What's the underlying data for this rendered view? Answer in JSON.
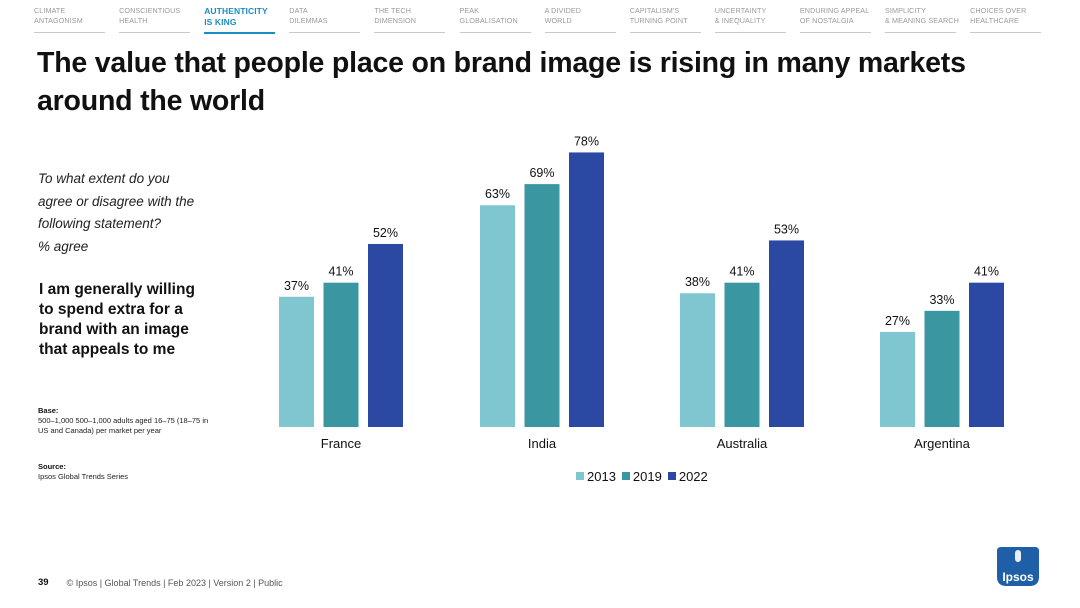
{
  "nav": [
    {
      "line1": "CLIMATE",
      "line2": "ANTAGONISM",
      "active": false
    },
    {
      "line1": "CONSCIENTIOUS",
      "line2": "HEALTH",
      "active": false
    },
    {
      "line1": "AUTHENTICITY",
      "line2": "IS KING",
      "active": true
    },
    {
      "line1": "DATA",
      "line2": "DILEMMAS",
      "active": false
    },
    {
      "line1": "THE TECH",
      "line2": "DIMENSION",
      "active": false
    },
    {
      "line1": "PEAK",
      "line2": "GLOBALISATION",
      "active": false
    },
    {
      "line1": "A DIVIDED",
      "line2": "WORLD",
      "active": false
    },
    {
      "line1": "CAPITALISM'S",
      "line2": "TURNING POINT",
      "active": false
    },
    {
      "line1": "UNCERTAINTY",
      "line2": "& INEQUALITY",
      "active": false
    },
    {
      "line1": "ENDURING APPEAL",
      "line2": "OF NOSTALGIA",
      "active": false
    },
    {
      "line1": "SIMPLICITY",
      "line2": "& MEANING SEARCH",
      "active": false
    },
    {
      "line1": "CHOICES OVER",
      "line2": "HEALTHCARE",
      "active": false
    }
  ],
  "title_line1": "The value that people place on brand image is rising in many markets",
  "title_line2": "around the world",
  "question": {
    "line1": "To what extent do you",
    "line2": "agree or disagree with the",
    "line3": "following statement?",
    "line4": "% agree"
  },
  "statement": {
    "line1": "I am generally willing",
    "line2": "to spend extra for a",
    "line3": "brand with an image",
    "line4": "that appeals to me"
  },
  "base": {
    "heading": "Base:",
    "line1": "500–1,000 500–1,000 adults aged 16–75 (18–75 in",
    "line2": "US and Canada) per market per year"
  },
  "source": {
    "heading": "Source:",
    "line1": "Ipsos Global Trends Series"
  },
  "footer": {
    "page_number": "39",
    "text": "© Ipsos | Global Trends | Feb 2023 | Version 2 | Public"
  },
  "logo_text": "Ipsos",
  "colors": {
    "accent": "#1a8cc6",
    "s2013": "#7fc6d1",
    "s2019": "#3a96a0",
    "s2022": "#2b48a3",
    "logo": "#1f5fa8"
  },
  "chart_data": {
    "type": "bar",
    "categories": [
      "France",
      "India",
      "Australia",
      "Argentina"
    ],
    "series": [
      {
        "name": "2013",
        "values": [
          37,
          63,
          38,
          27
        ]
      },
      {
        "name": "2019",
        "values": [
          41,
          69,
          41,
          33
        ]
      },
      {
        "name": "2022",
        "values": [
          52,
          78,
          53,
          41
        ]
      }
    ],
    "value_suffix": "%",
    "ylim": [
      0,
      78
    ],
    "grid": false,
    "legend_position": "bottom-center"
  }
}
